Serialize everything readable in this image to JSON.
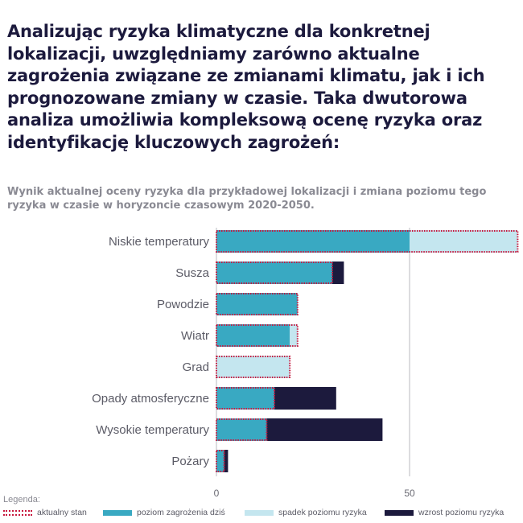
{
  "heading": "Analizując ryzyka klimatyczne dla konkretnej lokalizacji, uwzględniamy zarówno aktualne zagrożenia związane ze zmianami klimatu, jak i ich prognozowane zmiany w czasie. Taka dwutorowa analiza umożliwia kompleksową ocenę ryzyka oraz identyfikację kluczowych zagrożeń:",
  "colors": {
    "current": "#c8173d",
    "today": "#39a9c2",
    "decrease": "#c4e6ef",
    "increase": "#1c1a3d"
  },
  "chart_data": {
    "type": "bar",
    "orientation": "horizontal",
    "stacked": true,
    "title": "Wynik aktualnej oceny ryzyka dla przykładowej lokalizacji i zmiana poziomu tego ryzyka w czasie w horyzoncie czasowym 2020-2050.",
    "categories": [
      "Niskie temperatury",
      "Susza",
      "Powodzie",
      "Wiatr",
      "Grad",
      "Opady atmosferyczne",
      "Wysokie temperatury",
      "Pożary"
    ],
    "series": [
      {
        "name": "poziom zagrożenia dziś",
        "values": [
          50,
          30,
          21,
          19,
          0,
          15,
          13,
          2
        ]
      },
      {
        "name": "spadek poziomu ryzyka",
        "values": [
          28,
          0,
          0,
          2,
          19,
          0,
          0,
          0
        ]
      },
      {
        "name": "wzrost poziomu ryzyka",
        "values": [
          0,
          3,
          0,
          0,
          0,
          16,
          30,
          1
        ]
      }
    ],
    "current_state": [
      78,
      30,
      21,
      21,
      19,
      15,
      13,
      2
    ],
    "xlim": [
      0,
      78
    ],
    "xticks": [
      0,
      50
    ],
    "grid": "vertical at ticks",
    "legend": {
      "title": "Legenda:",
      "placement": "bottom",
      "items": [
        {
          "key": "current",
          "label": "aktualny stan"
        },
        {
          "key": "today",
          "label": "poziom zagrożenia dziś"
        },
        {
          "key": "decrease",
          "label": "spadek poziomu ryzyka"
        },
        {
          "key": "increase",
          "label": "wzrost poziomu ryzyka"
        }
      ]
    }
  }
}
